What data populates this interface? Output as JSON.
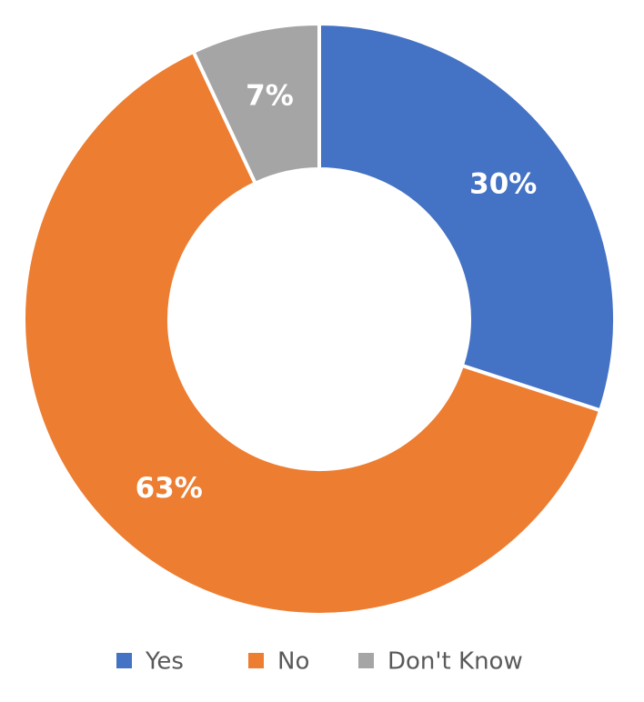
{
  "chart_data": {
    "type": "donut",
    "categories": [
      "Yes",
      "No",
      "Don't Know"
    ],
    "values": [
      30,
      63,
      7
    ],
    "value_labels": [
      "30%",
      "63%",
      "7%"
    ],
    "colors": [
      "#4472c4",
      "#ed7d31",
      "#a5a5a5"
    ],
    "legend": "bottom"
  }
}
